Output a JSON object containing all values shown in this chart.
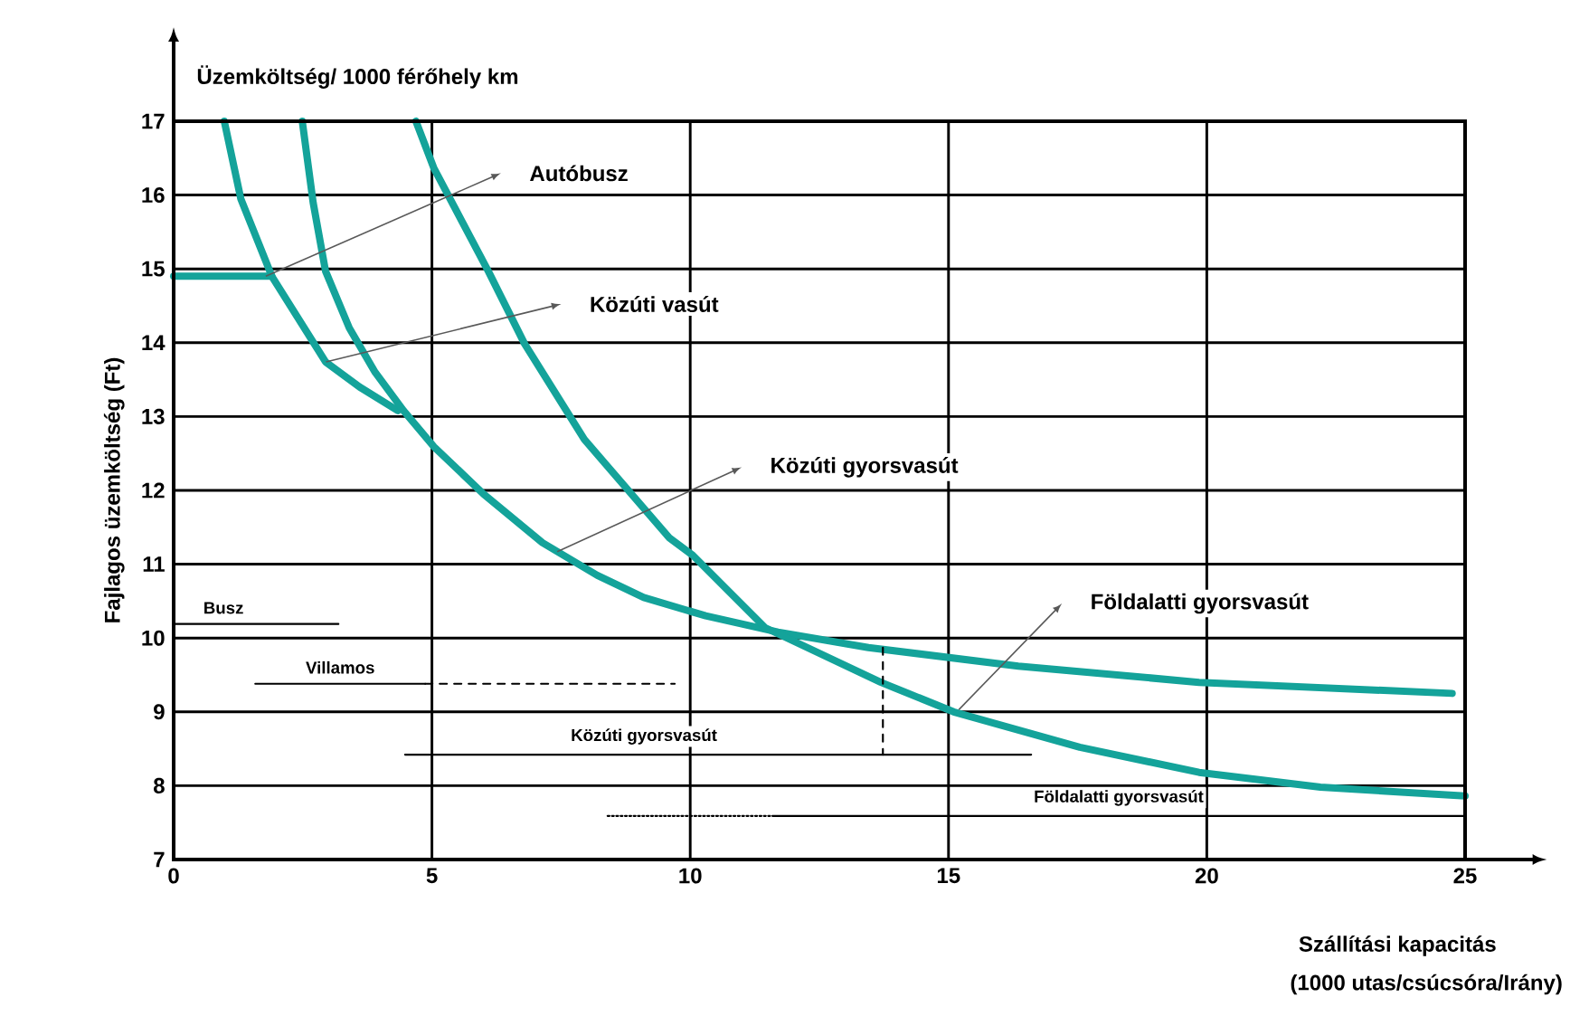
{
  "chart_data": {
    "type": "line",
    "title": "Üzemköltség/ 1000 férőhely km",
    "xlabel": "Szállítási kapacitás",
    "ylabel": "Fajlagos üzemköltség (Ft)",
    "color": "#14a39a",
    "xlim": [
      0,
      25
    ],
    "ylim": [
      7,
      17
    ],
    "xticks": [
      0,
      5,
      10,
      15,
      20,
      25
    ],
    "yticks": [
      7,
      8,
      9,
      10,
      11,
      12,
      13,
      14,
      15,
      16,
      17
    ],
    "grid": true,
    "series": [
      {
        "x": [
          0.98,
          1.3,
          1.9,
          2.94,
          3.6,
          4.34
        ],
        "values": [
          17,
          15.95,
          14.9,
          13.74,
          13.4,
          13.08
        ],
        "line_style": "solid"
      },
      {
        "x": [
          0,
          1.9
        ],
        "values": [
          14.9,
          14.9
        ],
        "line_style": "solid"
      },
      {
        "x": [
          2.49,
          2.7,
          2.94,
          3.4,
          3.9,
          4.45,
          5.04,
          6,
          7.14,
          8.2,
          9.1,
          10.3,
          11.7,
          13.45,
          16.35,
          19.85,
          24.75
        ],
        "values": [
          17,
          15.9,
          14.97,
          14.2,
          13.6,
          13.08,
          12.59,
          11.95,
          11.29,
          10.85,
          10.55,
          10.3,
          10.08,
          9.87,
          9.62,
          9.4,
          9.25
        ],
        "line_style": "solid"
      },
      {
        "x": [
          4.69,
          5.04,
          6.09,
          6.79,
          7.95,
          9.59,
          10.05,
          11.45,
          13.69,
          15.1,
          17.54,
          19.85,
          22.2,
          25
        ],
        "values": [
          17,
          16.36,
          14.97,
          13.99,
          12.69,
          11.36,
          11.12,
          10.14,
          9.4,
          9.0,
          8.52,
          8.18,
          7.98,
          7.86
        ],
        "line_style": "solid"
      },
      {
        "name": "Busz",
        "color": "#000000",
        "x": [
          0,
          1.93,
          3.19
        ],
        "values": [
          10.19,
          10.19,
          10.19
        ],
        "line_style": "solid"
      },
      {
        "name": "Villamos",
        "color": "#000000",
        "x": [
          1.58,
          4.87
        ],
        "values": [
          9.38,
          9.38
        ],
        "line_style": "solid"
      },
      {
        "color": "#000000",
        "x": [
          4.87,
          9.7
        ],
        "values": [
          9.38,
          9.38
        ],
        "line_style": "dashed"
      },
      {
        "name": "Közúti gyorsvasút",
        "color": "#000000",
        "x": [
          4.48,
          13.73,
          16.6
        ],
        "values": [
          8.42,
          8.42,
          8.42
        ],
        "line_style": "solid"
      },
      {
        "color": "#000000",
        "x": [
          13.73,
          13.73
        ],
        "values": [
          9.87,
          8.42
        ],
        "line_style": "dashed"
      },
      {
        "color": "#000000",
        "x": [
          8.4,
          11.59
        ],
        "values": [
          7.59,
          7.59
        ],
        "line_style": "dotted"
      },
      {
        "name": "Földalatti gyorsvasút",
        "color": "#000000",
        "x": [
          11.59,
          25
        ],
        "values": [
          7.59,
          7.59
        ],
        "line_style": "solid"
      }
    ],
    "annotations": [
      "Autóbusz",
      "Közúti vasút",
      "Közúti gyorsvasút",
      "Földalatti  gyorsvasút",
      "(1000 utas/csúcsóra/Irány)"
    ]
  }
}
